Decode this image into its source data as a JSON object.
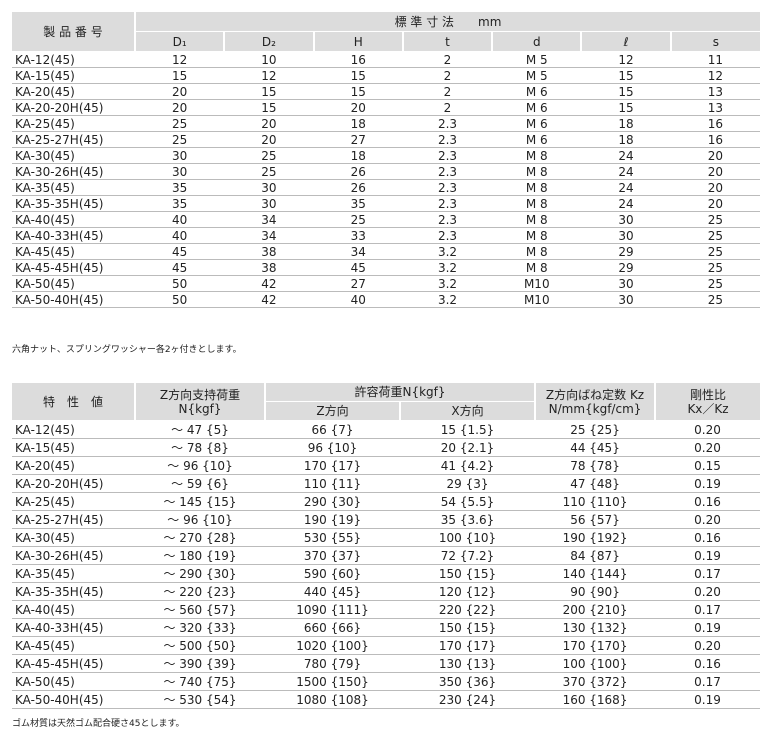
{
  "table1": {
    "header": {
      "name": "製 品 番 号",
      "group": "標 準 寸 法　　mm",
      "columns": [
        "D₁",
        "D₂",
        "H",
        "t",
        "d",
        "ℓ",
        "s"
      ]
    },
    "rows": [
      [
        "KA-12(45)",
        12,
        10,
        16,
        2,
        "M 5",
        12,
        11
      ],
      [
        "KA-15(45)",
        15,
        12,
        15,
        2,
        "M 5",
        15,
        12
      ],
      [
        "KA-20(45)",
        20,
        15,
        15,
        2,
        "M 6",
        15,
        13
      ],
      [
        "KA-20-20H(45)",
        20,
        15,
        20,
        2,
        "M 6",
        15,
        13
      ],
      [
        "KA-25(45)",
        25,
        20,
        18,
        2.3,
        "M 6",
        18,
        16
      ],
      [
        "KA-25-27H(45)",
        25,
        20,
        27,
        2.3,
        "M 6",
        18,
        16
      ],
      [
        "KA-30(45)",
        30,
        25,
        18,
        2.3,
        "M 8",
        24,
        20
      ],
      [
        "KA-30-26H(45)",
        30,
        25,
        26,
        2.3,
        "M 8",
        24,
        20
      ],
      [
        "KA-35(45)",
        35,
        30,
        26,
        2.3,
        "M 8",
        24,
        20
      ],
      [
        "KA-35-35H(45)",
        35,
        30,
        35,
        2.3,
        "M 8",
        24,
        20
      ],
      [
        "KA-40(45)",
        40,
        34,
        25,
        2.3,
        "M 8",
        30,
        25
      ],
      [
        "KA-40-33H(45)",
        40,
        34,
        33,
        2.3,
        "M 8",
        30,
        25
      ],
      [
        "KA-45(45)",
        45,
        38,
        34,
        3.2,
        "M 8",
        29,
        25
      ],
      [
        "KA-45-45H(45)",
        45,
        38,
        45,
        3.2,
        "M 8",
        29,
        25
      ],
      [
        "KA-50(45)",
        50,
        42,
        27,
        3.2,
        "M10",
        30,
        25
      ],
      [
        "KA-50-40H(45)",
        50,
        42,
        40,
        3.2,
        "M10",
        30,
        25
      ]
    ],
    "note": "六角ナット、スプリングワッシャー各2ヶ付きとします。"
  },
  "table2": {
    "header": {
      "name": "特　性　値",
      "zload": [
        "Z方向支持荷重",
        "N{kgf}"
      ],
      "allow": "許容荷重N{kgf}",
      "allow_z": "Z方向",
      "allow_x": "X方向",
      "spring": [
        "Z方向ばね定数 Kz",
        "N/mm{kgf/cm}"
      ],
      "ratio": [
        "剛性比",
        "Kx／Kz"
      ]
    },
    "rows": [
      [
        "KA-12(45)",
        "～ 47 {5}",
        "66 {7}",
        "15 {1.5}",
        "25 {25}",
        "0.20"
      ],
      [
        "KA-15(45)",
        "～ 78 {8}",
        "96 {10}",
        "20 {2.1}",
        "44 {45}",
        "0.20"
      ],
      [
        "KA-20(45)",
        "～ 96 {10}",
        "170 {17}",
        "41 {4.2}",
        "78 {78}",
        "0.15"
      ],
      [
        "KA-20-20H(45)",
        "～ 59 {6}",
        "110 {11}",
        "29 {3}",
        "47 {48}",
        "0.19"
      ],
      [
        "KA-25(45)",
        "～ 145 {15}",
        "290 {30}",
        "54 {5.5}",
        "110 {110}",
        "0.16"
      ],
      [
        "KA-25-27H(45)",
        "～ 96 {10}",
        "190 {19}",
        "35 {3.6}",
        "56 {57}",
        "0.20"
      ],
      [
        "KA-30(45)",
        "～ 270 {28}",
        "530 {55}",
        "100 {10}",
        "190 {192}",
        "0.16"
      ],
      [
        "KA-30-26H(45)",
        "～ 180 {19}",
        "370 {37}",
        "72 {7.2}",
        "84 {87}",
        "0.19"
      ],
      [
        "KA-35(45)",
        "～ 290 {30}",
        "590 {60}",
        "150 {15}",
        "140 {144}",
        "0.17"
      ],
      [
        "KA-35-35H(45)",
        "～ 220 {23}",
        "440 {45}",
        "120 {12}",
        "90 {90}",
        "0.20"
      ],
      [
        "KA-40(45)",
        "～ 560 {57}",
        "1090 {111}",
        "220 {22}",
        "200 {210}",
        "0.17"
      ],
      [
        "KA-40-33H(45)",
        "～ 320 {33}",
        "660 {66}",
        "150 {15}",
        "130 {132}",
        "0.19"
      ],
      [
        "KA-45(45)",
        "～ 500 {50}",
        "1020 {100}",
        "170 {17}",
        "170 {170}",
        "0.20"
      ],
      [
        "KA-45-45H(45)",
        "～ 390 {39}",
        "780 {79}",
        "130 {13}",
        "100 {100}",
        "0.16"
      ],
      [
        "KA-50(45)",
        "～ 740 {75}",
        "1500 {150}",
        "350 {36}",
        "370 {372}",
        "0.17"
      ],
      [
        "KA-50-40H(45)",
        "～ 530 {54}",
        "1080 {108}",
        "230 {24}",
        "160 {168}",
        "0.19"
      ]
    ],
    "note": "ゴム材質は天然ゴム配合硬さ45とします。"
  }
}
